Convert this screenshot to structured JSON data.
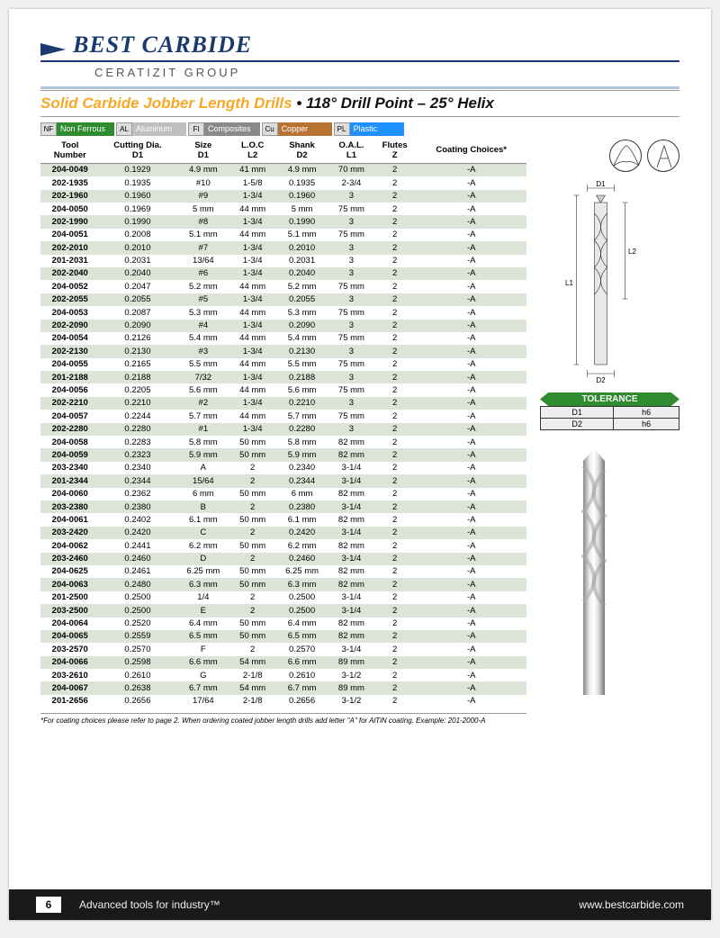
{
  "logo": {
    "brand": "BEST CARBIDE",
    "group": "CERATIZIT GROUP"
  },
  "title": {
    "part1": "Solid Carbide Jobber Length Drills",
    "sep": " • ",
    "part2": "118° Drill Point – 25° Helix"
  },
  "materials": [
    {
      "code": "NF",
      "label": "Non Ferrous",
      "color": "#2e8b2e"
    },
    {
      "code": "AL",
      "label": "Aluminum",
      "color": "#bfbfbf"
    },
    {
      "code": "FI",
      "label": "Composites",
      "color": "#8a8a8a"
    },
    {
      "code": "Cu",
      "label": "Copper",
      "color": "#b87333"
    },
    {
      "code": "PL",
      "label": "Plastic",
      "color": "#1e90ff"
    }
  ],
  "columns": [
    {
      "l1": "Tool",
      "l2": "Number"
    },
    {
      "l1": "Cutting Dia.",
      "l2": "D1"
    },
    {
      "l1": "Size",
      "l2": "D1"
    },
    {
      "l1": "L.O.C",
      "l2": "L2"
    },
    {
      "l1": "Shank",
      "l2": "D2"
    },
    {
      "l1": "O.A.L.",
      "l2": "L1"
    },
    {
      "l1": "Flutes",
      "l2": "Z"
    },
    {
      "l1": "Coating Choices*",
      "l2": ""
    }
  ],
  "rows": [
    [
      "204-0049",
      "0.1929",
      "4.9 mm",
      "41 mm",
      "4.9 mm",
      "70 mm",
      "2",
      "-A"
    ],
    [
      "202-1935",
      "0.1935",
      "#10",
      "1-5/8",
      "0.1935",
      "2-3/4",
      "2",
      "-A"
    ],
    [
      "202-1960",
      "0.1960",
      "#9",
      "1-3/4",
      "0.1960",
      "3",
      "2",
      "-A"
    ],
    [
      "204-0050",
      "0.1969",
      "5 mm",
      "44 mm",
      "5 mm",
      "75 mm",
      "2",
      "-A"
    ],
    [
      "202-1990",
      "0.1990",
      "#8",
      "1-3/4",
      "0.1990",
      "3",
      "2",
      "-A"
    ],
    [
      "204-0051",
      "0.2008",
      "5.1 mm",
      "44 mm",
      "5.1 mm",
      "75 mm",
      "2",
      "-A"
    ],
    [
      "202-2010",
      "0.2010",
      "#7",
      "1-3/4",
      "0.2010",
      "3",
      "2",
      "-A"
    ],
    [
      "201-2031",
      "0.2031",
      "13/64",
      "1-3/4",
      "0.2031",
      "3",
      "2",
      "-A"
    ],
    [
      "202-2040",
      "0.2040",
      "#6",
      "1-3/4",
      "0.2040",
      "3",
      "2",
      "-A"
    ],
    [
      "204-0052",
      "0.2047",
      "5.2 mm",
      "44 mm",
      "5.2 mm",
      "75 mm",
      "2",
      "-A"
    ],
    [
      "202-2055",
      "0.2055",
      "#5",
      "1-3/4",
      "0.2055",
      "3",
      "2",
      "-A"
    ],
    [
      "204-0053",
      "0.2087",
      "5.3 mm",
      "44 mm",
      "5.3 mm",
      "75 mm",
      "2",
      "-A"
    ],
    [
      "202-2090",
      "0.2090",
      "#4",
      "1-3/4",
      "0.2090",
      "3",
      "2",
      "-A"
    ],
    [
      "204-0054",
      "0.2126",
      "5.4 mm",
      "44 mm",
      "5.4 mm",
      "75 mm",
      "2",
      "-A"
    ],
    [
      "202-2130",
      "0.2130",
      "#3",
      "1-3/4",
      "0.2130",
      "3",
      "2",
      "-A"
    ],
    [
      "204-0055",
      "0.2165",
      "5.5 mm",
      "44 mm",
      "5.5 mm",
      "75 mm",
      "2",
      "-A"
    ],
    [
      "201-2188",
      "0.2188",
      "7/32",
      "1-3/4",
      "0.2188",
      "3",
      "2",
      "-A"
    ],
    [
      "204-0056",
      "0.2205",
      "5.6 mm",
      "44 mm",
      "5.6 mm",
      "75 mm",
      "2",
      "-A"
    ],
    [
      "202-2210",
      "0.2210",
      "#2",
      "1-3/4",
      "0.2210",
      "3",
      "2",
      "-A"
    ],
    [
      "204-0057",
      "0.2244",
      "5.7 mm",
      "44 mm",
      "5.7 mm",
      "75 mm",
      "2",
      "-A"
    ],
    [
      "202-2280",
      "0.2280",
      "#1",
      "1-3/4",
      "0.2280",
      "3",
      "2",
      "-A"
    ],
    [
      "204-0058",
      "0.2283",
      "5.8 mm",
      "50 mm",
      "5.8 mm",
      "82 mm",
      "2",
      "-A"
    ],
    [
      "204-0059",
      "0.2323",
      "5.9 mm",
      "50 mm",
      "5.9 mm",
      "82 mm",
      "2",
      "-A"
    ],
    [
      "203-2340",
      "0.2340",
      "A",
      "2",
      "0.2340",
      "3-1/4",
      "2",
      "-A"
    ],
    [
      "201-2344",
      "0.2344",
      "15/64",
      "2",
      "0.2344",
      "3-1/4",
      "2",
      "-A"
    ],
    [
      "204-0060",
      "0.2362",
      "6 mm",
      "50 mm",
      "6 mm",
      "82 mm",
      "2",
      "-A"
    ],
    [
      "203-2380",
      "0.2380",
      "B",
      "2",
      "0.2380",
      "3-1/4",
      "2",
      "-A"
    ],
    [
      "204-0061",
      "0.2402",
      "6.1 mm",
      "50 mm",
      "6.1 mm",
      "82 mm",
      "2",
      "-A"
    ],
    [
      "203-2420",
      "0.2420",
      "C",
      "2",
      "0.2420",
      "3-1/4",
      "2",
      "-A"
    ],
    [
      "204-0062",
      "0.2441",
      "6.2 mm",
      "50 mm",
      "6.2 mm",
      "82 mm",
      "2",
      "-A"
    ],
    [
      "203-2460",
      "0.2460",
      "D",
      "2",
      "0.2460",
      "3-1/4",
      "2",
      "-A"
    ],
    [
      "204-0625",
      "0.2461",
      "6.25 mm",
      "50 mm",
      "6.25 mm",
      "82 mm",
      "2",
      "-A"
    ],
    [
      "204-0063",
      "0.2480",
      "6.3 mm",
      "50 mm",
      "6.3 mm",
      "82 mm",
      "2",
      "-A"
    ],
    [
      "201-2500",
      "0.2500",
      "1/4",
      "2",
      "0.2500",
      "3-1/4",
      "2",
      "-A"
    ],
    [
      "203-2500",
      "0.2500",
      "E",
      "2",
      "0.2500",
      "3-1/4",
      "2",
      "-A"
    ],
    [
      "204-0064",
      "0.2520",
      "6.4 mm",
      "50 mm",
      "6.4 mm",
      "82 mm",
      "2",
      "-A"
    ],
    [
      "204-0065",
      "0.2559",
      "6.5 mm",
      "50 mm",
      "6.5 mm",
      "82 mm",
      "2",
      "-A"
    ],
    [
      "203-2570",
      "0.2570",
      "F",
      "2",
      "0.2570",
      "3-1/4",
      "2",
      "-A"
    ],
    [
      "204-0066",
      "0.2598",
      "6.6 mm",
      "54 mm",
      "6.6 mm",
      "89 mm",
      "2",
      "-A"
    ],
    [
      "203-2610",
      "0.2610",
      "G",
      "2-1/8",
      "0.2610",
      "3-1/2",
      "2",
      "-A"
    ],
    [
      "204-0067",
      "0.2638",
      "6.7 mm",
      "54 mm",
      "6.7 mm",
      "89 mm",
      "2",
      "-A"
    ],
    [
      "201-2656",
      "0.2656",
      "17/64",
      "2-1/8",
      "0.2656",
      "3-1/2",
      "2",
      "-A"
    ]
  ],
  "alt_row_color": "#dbe4d6",
  "diagram": {
    "d1": "D1",
    "d2": "D2",
    "l1": "L1",
    "l2": "L2"
  },
  "tolerance": {
    "header": "TOLERANCE",
    "rows": [
      [
        "D1",
        "h6"
      ],
      [
        "D2",
        "h6"
      ]
    ]
  },
  "footnote": "*For coating choices please refer to page 2. When ordering coated jobber length drills add letter \"A\" for AlTiN coating. Example: 201-2000-A",
  "footer": {
    "page": "6",
    "tagline": "Advanced tools for industry™",
    "url": "www.bestcarbide.com"
  }
}
